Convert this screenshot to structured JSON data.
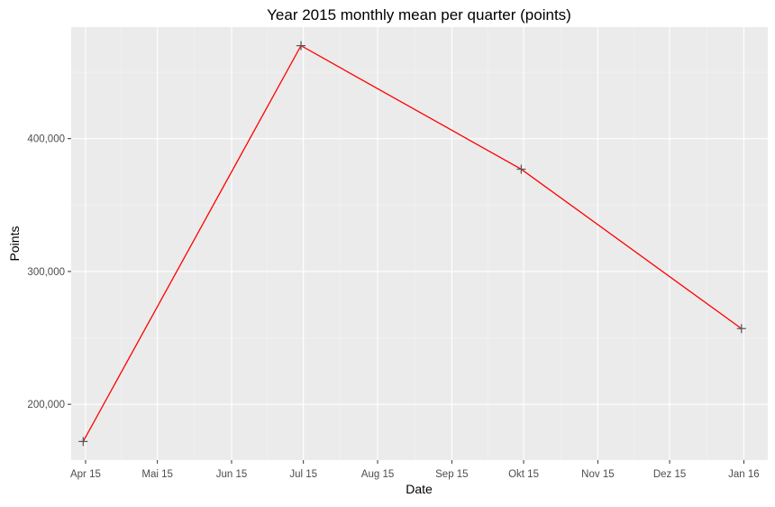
{
  "chart_data": {
    "type": "line",
    "title": "Year 2015 monthly mean per quarter (points)",
    "xlabel": "Date",
    "ylabel": "Points",
    "x_axis_type": "date",
    "xlim": [
      "2015-03-26",
      "2016-01-11"
    ],
    "ylim": [
      158000,
      484000
    ],
    "x_ticks": [
      {
        "date": "2015-04-01",
        "label": "Apr 15"
      },
      {
        "date": "2015-05-01",
        "label": "Mai 15"
      },
      {
        "date": "2015-06-01",
        "label": "Jun 15"
      },
      {
        "date": "2015-07-01",
        "label": "Jul 15"
      },
      {
        "date": "2015-08-01",
        "label": "Aug 15"
      },
      {
        "date": "2015-09-01",
        "label": "Sep 15"
      },
      {
        "date": "2015-10-01",
        "label": "Okt 15"
      },
      {
        "date": "2015-11-01",
        "label": "Nov 15"
      },
      {
        "date": "2015-12-01",
        "label": "Dez 15"
      },
      {
        "date": "2016-01-01",
        "label": "Jan 16"
      }
    ],
    "y_ticks": [
      {
        "value": 200000,
        "label": "200,000"
      },
      {
        "value": 300000,
        "label": "300,000"
      },
      {
        "value": 400000,
        "label": "400,000"
      }
    ],
    "grid": true,
    "legend": "none",
    "series": [
      {
        "color": "#ff0000",
        "marker": "plus",
        "marker_color": "#555555",
        "points": [
          {
            "x": "2015-03-31",
            "y": 172000
          },
          {
            "x": "2015-06-30",
            "y": 470000
          },
          {
            "x": "2015-09-30",
            "y": 377000
          },
          {
            "x": "2015-12-31",
            "y": 257000
          }
        ]
      }
    ],
    "colors": {
      "panel_background": "#ebebeb",
      "grid_major": "#ffffff",
      "grid_minor": "#f5f5f5",
      "tick_text": "#4d4d4d",
      "title_text": "#000000"
    }
  }
}
